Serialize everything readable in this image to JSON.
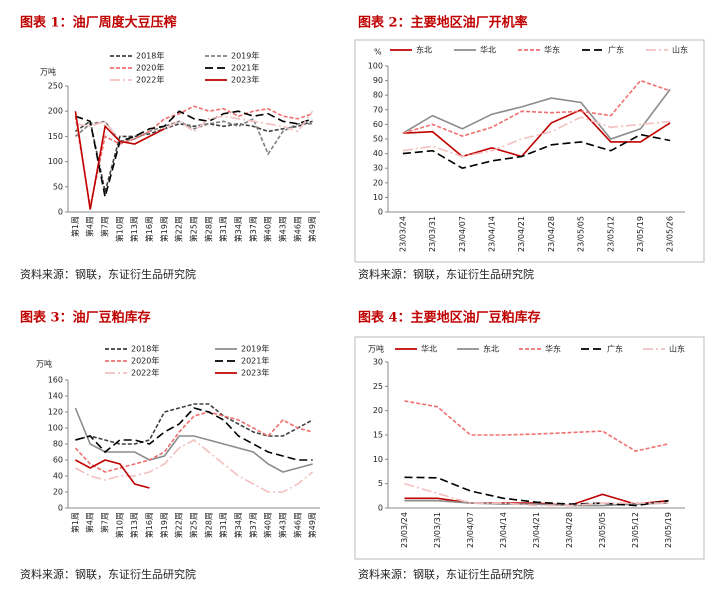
{
  "chart_data": [
    {
      "type": "line",
      "title": "图表 1：油厂周度大豆压榨",
      "source": "资料来源：钢联，东证衍生品研究院",
      "y_label": "万吨",
      "categories": [
        "第1周",
        "第4周",
        "第7周",
        "第10周",
        "第13周",
        "第16周",
        "第19周",
        "第22周",
        "第25周",
        "第28周",
        "第31周",
        "第34周",
        "第37周",
        "第40周",
        "第43周",
        "第46周",
        "第49周"
      ],
      "ylim": [
        0,
        250
      ],
      "yticks": [
        0,
        50,
        100,
        150,
        200,
        250
      ],
      "series": [
        {
          "name": "2018年",
          "color": "#404040",
          "style": "dashed",
          "values": [
            160,
            180,
            40,
            150,
            150,
            155,
            165,
            175,
            170,
            175,
            170,
            175,
            170,
            160,
            165,
            170,
            180
          ]
        },
        {
          "name": "2019年",
          "color": "#808080",
          "style": "dashed",
          "values": [
            150,
            175,
            180,
            140,
            145,
            160,
            170,
            180,
            165,
            175,
            180,
            170,
            185,
            115,
            160,
            175,
            175
          ]
        },
        {
          "name": "2020年",
          "color": "#f07070",
          "style": "dashed",
          "values": [
            190,
            10,
            150,
            135,
            145,
            160,
            185,
            195,
            210,
            200,
            205,
            190,
            200,
            205,
            190,
            185,
            195
          ]
        },
        {
          "name": "2021年",
          "color": "#000000",
          "style": "longdash",
          "values": [
            190,
            180,
            30,
            140,
            150,
            165,
            170,
            200,
            185,
            180,
            195,
            200,
            190,
            195,
            180,
            175,
            185
          ]
        },
        {
          "name": "2022年",
          "color": "#f4c0c0",
          "style": "dashdot",
          "values": [
            175,
            170,
            180,
            140,
            135,
            150,
            165,
            180,
            160,
            185,
            190,
            185,
            180,
            175,
            170,
            160,
            200
          ]
        },
        {
          "name": "2023年",
          "color": "#c00000",
          "style": "solid",
          "values": [
            200,
            5,
            170,
            140,
            135,
            150,
            165,
            null,
            null,
            null,
            null,
            null,
            null,
            null,
            null,
            null,
            null
          ]
        }
      ]
    },
    {
      "type": "line",
      "title": "图表 2：主要地区油厂开机率",
      "source": "资料来源：钢联，东证衍生品研究院",
      "y_label": "%",
      "categories": [
        "23/03/24",
        "23/03/31",
        "23/04/07",
        "23/04/14",
        "23/04/21",
        "23/04/28",
        "23/05/05",
        "23/05/12",
        "23/05/19",
        "23/05/26"
      ],
      "ylim": [
        0,
        100
      ],
      "yticks": [
        0,
        10,
        20,
        30,
        40,
        50,
        60,
        70,
        80,
        90,
        100
      ],
      "series": [
        {
          "name": "东北",
          "color": "#c00000",
          "style": "solid",
          "values": [
            54,
            55,
            38,
            44,
            38,
            61,
            70,
            48,
            48,
            61
          ]
        },
        {
          "name": "华北",
          "color": "#8c8c8c",
          "style": "solid",
          "values": [
            54,
            66,
            57,
            67,
            72,
            78,
            75,
            50,
            57,
            84
          ]
        },
        {
          "name": "华东",
          "color": "#f07070",
          "style": "dashed",
          "values": [
            54,
            60,
            52,
            58,
            69,
            68,
            69,
            66,
            90,
            83
          ]
        },
        {
          "name": "广东",
          "color": "#000000",
          "style": "longdash",
          "values": [
            40,
            42,
            30,
            35,
            38,
            46,
            48,
            42,
            53,
            49
          ]
        },
        {
          "name": "山东",
          "color": "#f4c0c0",
          "style": "dashdot",
          "values": [
            42,
            45,
            38,
            42,
            50,
            55,
            65,
            58,
            60,
            62
          ]
        }
      ]
    },
    {
      "type": "line",
      "title": "图表 3：油厂豆粕库存",
      "source": "资料来源：钢联，东证衍生品研究院",
      "y_label": "万吨",
      "categories": [
        "第1周",
        "第4周",
        "第7周",
        "第10周",
        "第13周",
        "第16周",
        "第19周",
        "第22周",
        "第25周",
        "第28周",
        "第31周",
        "第34周",
        "第37周",
        "第40周",
        "第43周",
        "第46周",
        "第49周"
      ],
      "ylim": [
        0,
        160
      ],
      "yticks": [
        0,
        20,
        40,
        60,
        80,
        100,
        120,
        140,
        160
      ],
      "series": [
        {
          "name": "2018年",
          "color": "#404040",
          "style": "dashed",
          "values": [
            85,
            90,
            85,
            80,
            80,
            85,
            120,
            125,
            130,
            130,
            115,
            105,
            95,
            90,
            90,
            100,
            110
          ]
        },
        {
          "name": "2019年",
          "color": "#8c8c8c",
          "style": "solid",
          "values": [
            125,
            80,
            70,
            70,
            70,
            60,
            65,
            90,
            90,
            85,
            80,
            75,
            70,
            55,
            45,
            50,
            55
          ]
        },
        {
          "name": "2020年",
          "color": "#f07070",
          "style": "dashed",
          "values": [
            75,
            55,
            45,
            50,
            55,
            60,
            70,
            95,
            115,
            120,
            115,
            110,
            100,
            90,
            110,
            100,
            95
          ]
        },
        {
          "name": "2021年",
          "color": "#000000",
          "style": "longdash",
          "values": [
            85,
            90,
            70,
            85,
            85,
            80,
            95,
            105,
            125,
            120,
            110,
            90,
            80,
            70,
            65,
            60,
            60
          ]
        },
        {
          "name": "2022年",
          "color": "#f4c0c0",
          "style": "dashdot",
          "values": [
            50,
            40,
            35,
            40,
            40,
            45,
            55,
            75,
            85,
            70,
            55,
            40,
            30,
            20,
            20,
            30,
            45
          ]
        },
        {
          "name": "2023年",
          "color": "#c00000",
          "style": "solid",
          "values": [
            60,
            50,
            60,
            55,
            30,
            25,
            null,
            null,
            null,
            null,
            null,
            null,
            null,
            null,
            null,
            null,
            null
          ]
        }
      ]
    },
    {
      "type": "line",
      "title": "图表 4：主要地区油厂豆粕库存",
      "source": "资料来源：钢联，东证衍生品研究院",
      "y_label": "万吨",
      "categories": [
        "23/03/24",
        "23/03/31",
        "23/04/07",
        "23/04/14",
        "23/04/21",
        "23/04/28",
        "23/05/05",
        "23/05/12",
        "23/05/19"
      ],
      "ylim": [
        0,
        30
      ],
      "yticks": [
        0,
        5,
        10,
        15,
        20,
        25,
        30
      ],
      "series": [
        {
          "name": "华北",
          "color": "#c00000",
          "style": "solid",
          "values": [
            2,
            2,
            1,
            1,
            1,
            0.5,
            2.8,
            0.8,
            1.5
          ]
        },
        {
          "name": "东北",
          "color": "#8c8c8c",
          "style": "solid",
          "values": [
            1.5,
            1.5,
            1,
            0.8,
            0.8,
            0.5,
            0.5,
            0.8,
            1
          ]
        },
        {
          "name": "华东",
          "color": "#f07070",
          "style": "dashed",
          "values": [
            22,
            20.8,
            15,
            15,
            15.2,
            15.5,
            15.8,
            11.7,
            13.2
          ]
        },
        {
          "name": "广东",
          "color": "#000000",
          "style": "longdash",
          "values": [
            6.3,
            6.2,
            3.5,
            2,
            1.2,
            0.8,
            1,
            0.5,
            1.5
          ]
        },
        {
          "name": "山东",
          "color": "#f4c0c0",
          "style": "dashdot",
          "values": [
            5,
            3,
            1,
            1,
            0.5,
            0.5,
            1,
            1,
            1
          ]
        }
      ]
    }
  ]
}
